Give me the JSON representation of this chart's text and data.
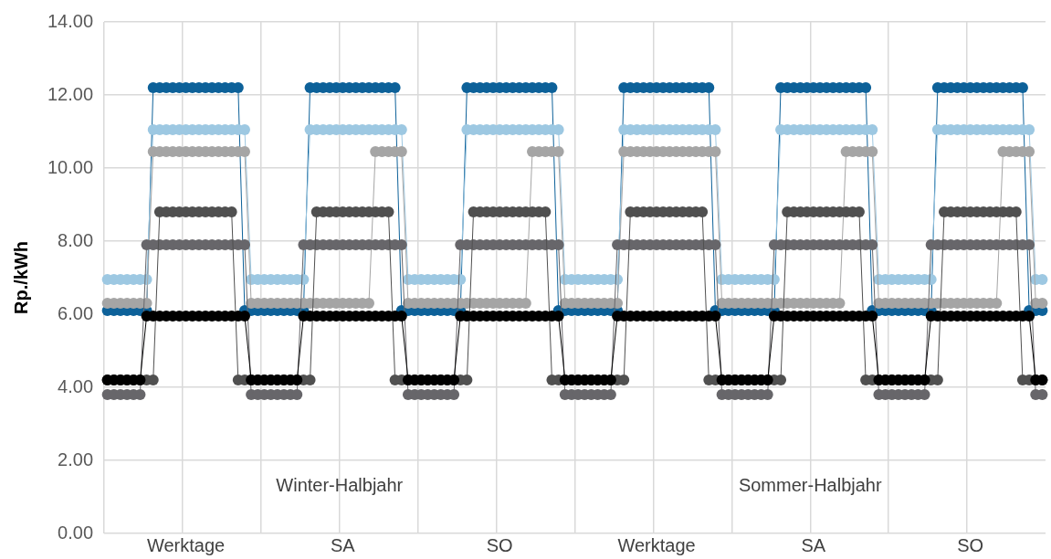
{
  "chart_data": {
    "type": "line",
    "ylabel": "Rp./kWh",
    "marker": "circle",
    "grid": true,
    "legend": false,
    "ylim": [
      0,
      14
    ],
    "yticks": [
      {
        "value": 0,
        "label": "0.00"
      },
      {
        "value": 2,
        "label": "2.00"
      },
      {
        "value": 4,
        "label": "4.00"
      },
      {
        "value": 6,
        "label": "6.00"
      },
      {
        "value": 8,
        "label": "8.00"
      },
      {
        "value": 10,
        "label": "10.00"
      },
      {
        "value": 12,
        "label": "12.00"
      },
      {
        "value": 14,
        "label": "14.00"
      }
    ],
    "annotations": [
      "Winter-Halbjahr",
      "Sommer-Halbjahr"
    ],
    "categories": [
      null,
      null,
      null,
      null,
      null,
      null,
      null,
      null,
      null,
      null,
      null,
      null,
      "Werktage",
      null,
      null,
      null,
      null,
      null,
      null,
      null,
      null,
      null,
      null,
      null,
      null,
      null,
      null,
      null,
      null,
      null,
      null,
      null,
      null,
      null,
      null,
      null,
      "SA",
      null,
      null,
      null,
      null,
      null,
      null,
      null,
      null,
      null,
      null,
      null,
      null,
      null,
      null,
      null,
      null,
      null,
      null,
      null,
      null,
      null,
      null,
      null,
      "SO",
      null,
      null,
      null,
      null,
      null,
      null,
      null,
      null,
      null,
      null,
      null,
      null,
      null,
      null,
      null,
      null,
      null,
      null,
      null,
      null,
      null,
      null,
      null,
      "Werktage",
      null,
      null,
      null,
      null,
      null,
      null,
      null,
      null,
      null,
      null,
      null,
      null,
      null,
      null,
      null,
      null,
      null,
      null,
      null,
      null,
      null,
      null,
      null,
      "SA",
      null,
      null,
      null,
      null,
      null,
      null,
      null,
      null,
      null,
      null,
      null,
      null,
      null,
      null,
      null,
      null,
      null,
      null,
      null,
      null,
      null,
      null,
      null,
      "SO",
      null,
      null,
      null,
      null,
      null,
      null,
      null,
      null,
      null,
      null,
      null
    ],
    "series": [
      {
        "color": "#000000",
        "values": [
          4.2,
          4.2,
          4.2,
          4.2,
          4.2,
          4.2,
          5.95,
          5.95,
          5.95,
          5.95,
          5.95,
          5.95,
          5.95,
          5.95,
          5.95,
          5.95,
          5.95,
          5.95,
          5.95,
          5.95,
          5.95,
          5.95,
          4.2,
          4.2,
          4.2,
          4.2,
          4.2,
          4.2,
          4.2,
          4.2,
          5.95,
          5.95,
          5.95,
          5.95,
          5.95,
          5.95,
          5.95,
          5.95,
          5.95,
          5.95,
          5.95,
          5.95,
          5.95,
          5.95,
          5.95,
          5.95,
          4.2,
          4.2,
          4.2,
          4.2,
          4.2,
          4.2,
          4.2,
          4.2,
          5.95,
          5.95,
          5.95,
          5.95,
          5.95,
          5.95,
          5.95,
          5.95,
          5.95,
          5.95,
          5.95,
          5.95,
          5.95,
          5.95,
          5.95,
          5.95,
          4.2,
          4.2,
          4.2,
          4.2,
          4.2,
          4.2,
          4.2,
          4.2,
          5.95,
          5.95,
          5.95,
          5.95,
          5.95,
          5.95,
          5.95,
          5.95,
          5.95,
          5.95,
          5.95,
          5.95,
          5.95,
          5.95,
          5.95,
          5.95,
          4.2,
          4.2,
          4.2,
          4.2,
          4.2,
          4.2,
          4.2,
          4.2,
          5.95,
          5.95,
          5.95,
          5.95,
          5.95,
          5.95,
          5.95,
          5.95,
          5.95,
          5.95,
          5.95,
          5.95,
          5.95,
          5.95,
          5.95,
          5.95,
          4.2,
          4.2,
          4.2,
          4.2,
          4.2,
          4.2,
          4.2,
          4.2,
          5.95,
          5.95,
          5.95,
          5.95,
          5.95,
          5.95,
          5.95,
          5.95,
          5.95,
          5.95,
          5.95,
          5.95,
          5.95,
          5.95,
          5.95,
          5.95,
          4.2,
          4.2
        ]
      },
      {
        "color": "#505050",
        "values": [
          4.2,
          4.2,
          4.2,
          4.2,
          4.2,
          4.2,
          4.2,
          4.2,
          8.8,
          8.8,
          8.8,
          8.8,
          8.8,
          8.8,
          8.8,
          8.8,
          8.8,
          8.8,
          8.8,
          8.8,
          4.2,
          4.2,
          4.2,
          4.2,
          4.2,
          4.2,
          4.2,
          4.2,
          4.2,
          4.2,
          4.2,
          4.2,
          8.8,
          8.8,
          8.8,
          8.8,
          8.8,
          8.8,
          8.8,
          8.8,
          8.8,
          8.8,
          8.8,
          8.8,
          4.2,
          4.2,
          4.2,
          4.2,
          4.2,
          4.2,
          4.2,
          4.2,
          4.2,
          4.2,
          4.2,
          4.2,
          8.8,
          8.8,
          8.8,
          8.8,
          8.8,
          8.8,
          8.8,
          8.8,
          8.8,
          8.8,
          8.8,
          8.8,
          4.2,
          4.2,
          4.2,
          4.2,
          4.2,
          4.2,
          4.2,
          4.2,
          4.2,
          4.2,
          4.2,
          4.2,
          8.8,
          8.8,
          8.8,
          8.8,
          8.8,
          8.8,
          8.8,
          8.8,
          8.8,
          8.8,
          8.8,
          8.8,
          4.2,
          4.2,
          4.2,
          4.2,
          4.2,
          4.2,
          4.2,
          4.2,
          4.2,
          4.2,
          4.2,
          4.2,
          8.8,
          8.8,
          8.8,
          8.8,
          8.8,
          8.8,
          8.8,
          8.8,
          8.8,
          8.8,
          8.8,
          8.8,
          4.2,
          4.2,
          4.2,
          4.2,
          4.2,
          4.2,
          4.2,
          4.2,
          4.2,
          4.2,
          4.2,
          4.2,
          8.8,
          8.8,
          8.8,
          8.8,
          8.8,
          8.8,
          8.8,
          8.8,
          8.8,
          8.8,
          8.8,
          8.8,
          4.2,
          4.2,
          4.2,
          4.2
        ]
      },
      {
        "color": "#67666a",
        "values": [
          3.8,
          3.8,
          3.8,
          3.8,
          3.8,
          3.8,
          7.9,
          7.9,
          7.9,
          7.9,
          7.9,
          7.9,
          7.9,
          7.9,
          7.9,
          7.9,
          7.9,
          7.9,
          7.9,
          7.9,
          7.9,
          7.9,
          3.8,
          3.8,
          3.8,
          3.8,
          3.8,
          3.8,
          3.8,
          3.8,
          7.9,
          7.9,
          7.9,
          7.9,
          7.9,
          7.9,
          7.9,
          7.9,
          7.9,
          7.9,
          7.9,
          7.9,
          7.9,
          7.9,
          7.9,
          7.9,
          3.8,
          3.8,
          3.8,
          3.8,
          3.8,
          3.8,
          3.8,
          3.8,
          7.9,
          7.9,
          7.9,
          7.9,
          7.9,
          7.9,
          7.9,
          7.9,
          7.9,
          7.9,
          7.9,
          7.9,
          7.9,
          7.9,
          7.9,
          7.9,
          3.8,
          3.8,
          3.8,
          3.8,
          3.8,
          3.8,
          3.8,
          3.8,
          7.9,
          7.9,
          7.9,
          7.9,
          7.9,
          7.9,
          7.9,
          7.9,
          7.9,
          7.9,
          7.9,
          7.9,
          7.9,
          7.9,
          7.9,
          7.9,
          3.8,
          3.8,
          3.8,
          3.8,
          3.8,
          3.8,
          3.8,
          3.8,
          7.9,
          7.9,
          7.9,
          7.9,
          7.9,
          7.9,
          7.9,
          7.9,
          7.9,
          7.9,
          7.9,
          7.9,
          7.9,
          7.9,
          7.9,
          7.9,
          3.8,
          3.8,
          3.8,
          3.8,
          3.8,
          3.8,
          3.8,
          3.8,
          7.9,
          7.9,
          7.9,
          7.9,
          7.9,
          7.9,
          7.9,
          7.9,
          7.9,
          7.9,
          7.9,
          7.9,
          7.9,
          7.9,
          7.9,
          7.9,
          3.8,
          3.8
        ]
      },
      {
        "color": "#a5a5a5",
        "values": [
          6.3,
          6.3,
          6.3,
          6.3,
          6.3,
          6.3,
          6.3,
          10.45,
          10.45,
          10.45,
          10.45,
          10.45,
          10.45,
          10.45,
          10.45,
          10.45,
          10.45,
          10.45,
          10.45,
          10.45,
          10.45,
          10.45,
          6.3,
          6.3,
          6.3,
          6.3,
          6.3,
          6.3,
          6.3,
          6.3,
          6.3,
          6.3,
          6.3,
          6.3,
          6.3,
          6.3,
          6.3,
          6.3,
          6.3,
          6.3,
          6.3,
          10.45,
          10.45,
          10.45,
          10.45,
          10.45,
          6.3,
          6.3,
          6.3,
          6.3,
          6.3,
          6.3,
          6.3,
          6.3,
          6.3,
          6.3,
          6.3,
          6.3,
          6.3,
          6.3,
          6.3,
          6.3,
          6.3,
          6.3,
          6.3,
          10.45,
          10.45,
          10.45,
          10.45,
          10.45,
          6.3,
          6.3,
          6.3,
          6.3,
          6.3,
          6.3,
          6.3,
          6.3,
          6.3,
          10.45,
          10.45,
          10.45,
          10.45,
          10.45,
          10.45,
          10.45,
          10.45,
          10.45,
          10.45,
          10.45,
          10.45,
          10.45,
          10.45,
          10.45,
          6.3,
          6.3,
          6.3,
          6.3,
          6.3,
          6.3,
          6.3,
          6.3,
          6.3,
          6.3,
          6.3,
          6.3,
          6.3,
          6.3,
          6.3,
          6.3,
          6.3,
          6.3,
          6.3,
          10.45,
          10.45,
          10.45,
          10.45,
          10.45,
          6.3,
          6.3,
          6.3,
          6.3,
          6.3,
          6.3,
          6.3,
          6.3,
          6.3,
          6.3,
          6.3,
          6.3,
          6.3,
          6.3,
          6.3,
          6.3,
          6.3,
          6.3,
          6.3,
          10.45,
          10.45,
          10.45,
          10.45,
          10.45,
          6.3,
          6.3
        ]
      },
      {
        "color": "#9dc8e2",
        "values": [
          6.95,
          6.95,
          6.95,
          6.95,
          6.95,
          6.95,
          6.95,
          11.05,
          11.05,
          11.05,
          11.05,
          11.05,
          11.05,
          11.05,
          11.05,
          11.05,
          11.05,
          11.05,
          11.05,
          11.05,
          11.05,
          11.05,
          6.95,
          6.95,
          6.95,
          6.95,
          6.95,
          6.95,
          6.95,
          6.95,
          6.95,
          11.05,
          11.05,
          11.05,
          11.05,
          11.05,
          11.05,
          11.05,
          11.05,
          11.05,
          11.05,
          11.05,
          11.05,
          11.05,
          11.05,
          11.05,
          6.95,
          6.95,
          6.95,
          6.95,
          6.95,
          6.95,
          6.95,
          6.95,
          6.95,
          11.05,
          11.05,
          11.05,
          11.05,
          11.05,
          11.05,
          11.05,
          11.05,
          11.05,
          11.05,
          11.05,
          11.05,
          11.05,
          11.05,
          11.05,
          6.95,
          6.95,
          6.95,
          6.95,
          6.95,
          6.95,
          6.95,
          6.95,
          6.95,
          11.05,
          11.05,
          11.05,
          11.05,
          11.05,
          11.05,
          11.05,
          11.05,
          11.05,
          11.05,
          11.05,
          11.05,
          11.05,
          11.05,
          11.05,
          6.95,
          6.95,
          6.95,
          6.95,
          6.95,
          6.95,
          6.95,
          6.95,
          6.95,
          11.05,
          11.05,
          11.05,
          11.05,
          11.05,
          11.05,
          11.05,
          11.05,
          11.05,
          11.05,
          11.05,
          11.05,
          11.05,
          11.05,
          11.05,
          6.95,
          6.95,
          6.95,
          6.95,
          6.95,
          6.95,
          6.95,
          6.95,
          6.95,
          11.05,
          11.05,
          11.05,
          11.05,
          11.05,
          11.05,
          11.05,
          11.05,
          11.05,
          11.05,
          11.05,
          11.05,
          11.05,
          11.05,
          11.05,
          6.95,
          6.95
        ]
      },
      {
        "color": "#0d6199",
        "values": [
          6.1,
          6.1,
          6.1,
          6.1,
          6.1,
          6.1,
          6.1,
          12.2,
          12.2,
          12.2,
          12.2,
          12.2,
          12.2,
          12.2,
          12.2,
          12.2,
          12.2,
          12.2,
          12.2,
          12.2,
          12.2,
          6.1,
          6.1,
          6.1,
          6.1,
          6.1,
          6.1,
          6.1,
          6.1,
          6.1,
          6.1,
          12.2,
          12.2,
          12.2,
          12.2,
          12.2,
          12.2,
          12.2,
          12.2,
          12.2,
          12.2,
          12.2,
          12.2,
          12.2,
          12.2,
          6.1,
          6.1,
          6.1,
          6.1,
          6.1,
          6.1,
          6.1,
          6.1,
          6.1,
          6.1,
          12.2,
          12.2,
          12.2,
          12.2,
          12.2,
          12.2,
          12.2,
          12.2,
          12.2,
          12.2,
          12.2,
          12.2,
          12.2,
          12.2,
          6.1,
          6.1,
          6.1,
          6.1,
          6.1,
          6.1,
          6.1,
          6.1,
          6.1,
          6.1,
          12.2,
          12.2,
          12.2,
          12.2,
          12.2,
          12.2,
          12.2,
          12.2,
          12.2,
          12.2,
          12.2,
          12.2,
          12.2,
          12.2,
          6.1,
          6.1,
          6.1,
          6.1,
          6.1,
          6.1,
          6.1,
          6.1,
          6.1,
          6.1,
          12.2,
          12.2,
          12.2,
          12.2,
          12.2,
          12.2,
          12.2,
          12.2,
          12.2,
          12.2,
          12.2,
          12.2,
          12.2,
          12.2,
          6.1,
          6.1,
          6.1,
          6.1,
          6.1,
          6.1,
          6.1,
          6.1,
          6.1,
          6.1,
          12.2,
          12.2,
          12.2,
          12.2,
          12.2,
          12.2,
          12.2,
          12.2,
          12.2,
          12.2,
          12.2,
          12.2,
          12.2,
          12.2,
          6.1,
          6.1,
          6.1
        ]
      }
    ]
  }
}
